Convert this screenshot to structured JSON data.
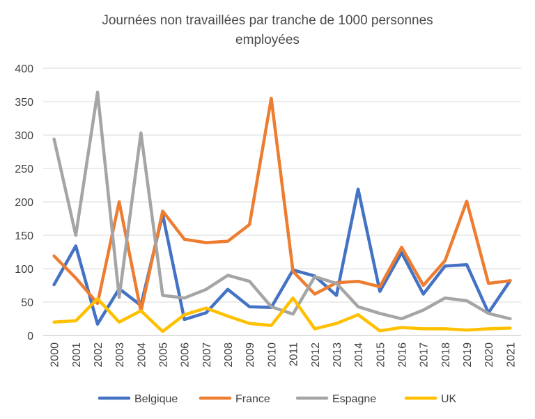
{
  "chart_data": {
    "type": "line",
    "title_lines": [
      "Journées non travaillées par tranche de 1000 personnes",
      "employées"
    ],
    "xlabel": "",
    "ylabel": "",
    "ylim": [
      0,
      400
    ],
    "yticks": [
      "0",
      "50",
      "100",
      "150",
      "200",
      "250",
      "300",
      "350",
      "400"
    ],
    "categories": [
      "2000",
      "2001",
      "2002",
      "2003",
      "2004",
      "2005",
      "2006",
      "2007",
      "2008",
      "2009",
      "2010",
      "2011",
      "2012",
      "2013",
      "2014",
      "2015",
      "2016",
      "2017",
      "2018",
      "2019",
      "2020",
      "2021"
    ],
    "grid": true,
    "legend_position": "bottom",
    "series": [
      {
        "name": "Belgique",
        "color": "#4472C4",
        "values": [
          76,
          134,
          17,
          70,
          45,
          181,
          24,
          34,
          69,
          43,
          42,
          98,
          89,
          60,
          219,
          66,
          124,
          62,
          104,
          106,
          34,
          82
        ]
      },
      {
        "name": "France",
        "color": "#ED7D31",
        "values": [
          119,
          86,
          48,
          200,
          36,
          186,
          144,
          139,
          141,
          166,
          355,
          96,
          62,
          79,
          81,
          73,
          132,
          75,
          112,
          201,
          78,
          82
        ]
      },
      {
        "name": "Espagne",
        "color": "#A5A5A5",
        "values": [
          294,
          150,
          364,
          57,
          303,
          60,
          56,
          69,
          90,
          81,
          43,
          32,
          88,
          78,
          43,
          33,
          25,
          38,
          56,
          52,
          33,
          25
        ]
      },
      {
        "name": "UK",
        "color": "#FFC000",
        "values": [
          20,
          22,
          55,
          20,
          37,
          6,
          31,
          41,
          29,
          18,
          15,
          56,
          10,
          18,
          31,
          7,
          12,
          10,
          10,
          8,
          10,
          11
        ]
      }
    ]
  }
}
